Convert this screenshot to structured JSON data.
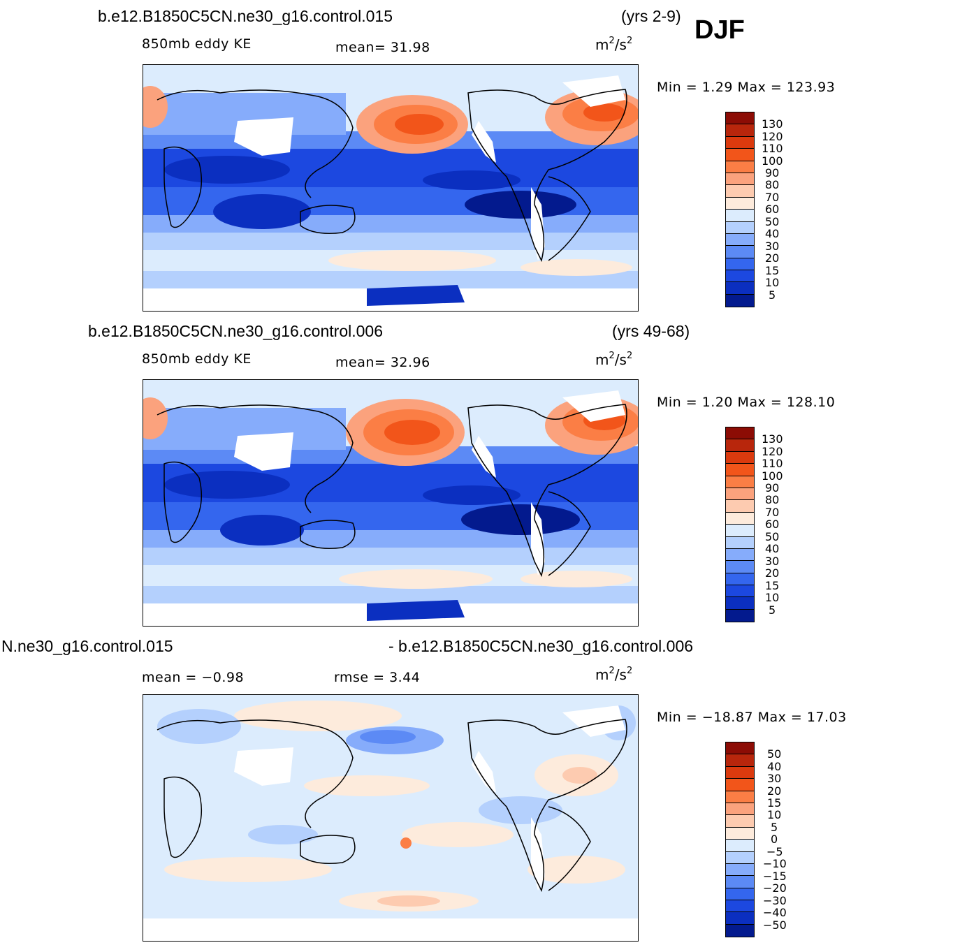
{
  "season": "DJF",
  "panels": [
    {
      "case": "b.e12.B1850C5CN.ne30_g16.control.015",
      "years": "(yrs 2-9)",
      "variable": "850mb  eddy  KE",
      "stat": "mean=   31.98",
      "units_base": "m",
      "units_sup1": "2",
      "units_mid": "/s",
      "units_sup2": "2",
      "minmax": "Min  =       1.29  Max  =  123.93",
      "colorbar_labels": [
        "130",
        "120",
        "110",
        "100",
        "90",
        "80",
        "70",
        "60",
        "50",
        "40",
        "30",
        "20",
        "15",
        "10",
        "5"
      ]
    },
    {
      "case": "b.e12.B1850C5CN.ne30_g16.control.006",
      "years": "(yrs 49-68)",
      "variable": "850mb  eddy  KE",
      "stat": "mean=   32.96",
      "units_base": "m",
      "units_sup1": "2",
      "units_mid": "/s",
      "units_sup2": "2",
      "minmax": "Min  =       1.20  Max  =  128.10",
      "colorbar_labels": [
        "130",
        "120",
        "110",
        "100",
        "90",
        "80",
        "70",
        "60",
        "50",
        "40",
        "30",
        "20",
        "15",
        "10",
        "5"
      ]
    },
    {
      "case_left": "N.ne30_g16.control.015",
      "case_right": "- b.e12.B1850C5CN.ne30_g16.control.006",
      "mean": "mean  =    −0.98",
      "rmse": "rmse  =     3.44",
      "units_base": "m",
      "units_sup1": "2",
      "units_mid": "/s",
      "units_sup2": "2",
      "minmax": "Min  = −18.87  Max  =    17.03",
      "colorbar_labels": [
        "50",
        "40",
        "30",
        "20",
        "15",
        "10",
        "5",
        "0",
        "−5",
        "−10",
        "−15",
        "−20",
        "−30",
        "−40",
        "−50"
      ]
    }
  ],
  "colors": {
    "scale": [
      "#8c0c05",
      "#b8260c",
      "#db3a0e",
      "#f2551a",
      "#fb7e45",
      "#fba27d",
      "#fdcbb0",
      "#fdebdc",
      "#dcecfd",
      "#b4d0fd",
      "#86acfb",
      "#5c8af5",
      "#3466ee",
      "#1c48e0",
      "#0b2fc0",
      "#031a8e"
    ],
    "land": "#ffffff",
    "coast": "#000000"
  }
}
